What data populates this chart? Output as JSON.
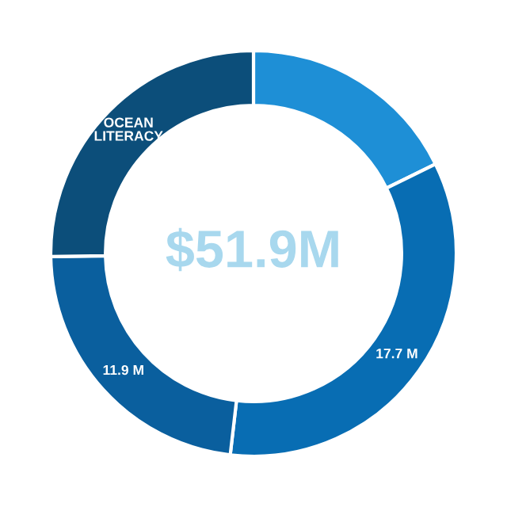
{
  "chart_data": {
    "type": "donut",
    "title": "$51.9M",
    "categories": [
      null,
      null,
      null,
      "OCEAN LITERACY"
    ],
    "values": [
      9.2,
      17.7,
      11.9,
      13.1
    ],
    "value_labels": [
      null,
      "17.7 M",
      "11.9 M",
      null
    ],
    "colors": [
      "#1e8fd6",
      "#086db3",
      "#0a5f9e",
      "#0c4e7a"
    ],
    "legend": false
  }
}
